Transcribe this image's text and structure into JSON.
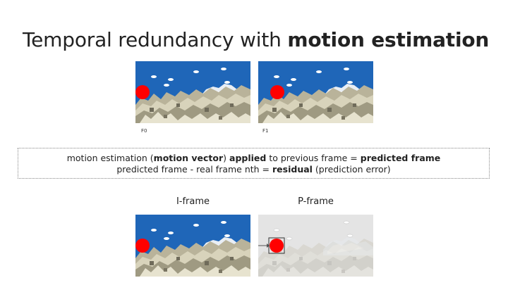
{
  "title": {
    "plain": "Temporal redundancy with ",
    "bold": "motion estimation"
  },
  "frames_top": [
    {
      "label": "F0"
    },
    {
      "label": "F1"
    }
  ],
  "explanation": {
    "line1": {
      "a": "motion estimation (",
      "b": "motion vector",
      "c": ") ",
      "d": "applied",
      "e": " to previous frame = ",
      "f": "predicted frame"
    },
    "line2": {
      "a": "predicted frame - real frame nth = ",
      "b": "residual",
      "c": " (prediction error)"
    }
  },
  "bottom": {
    "iframe_label": "I-frame",
    "pframe_label": "P-frame"
  },
  "colors": {
    "sky": "#1f66b8",
    "ball": "#ff0000",
    "rock": "#c9c4a8",
    "grey_bg": "#e4e4e4"
  }
}
